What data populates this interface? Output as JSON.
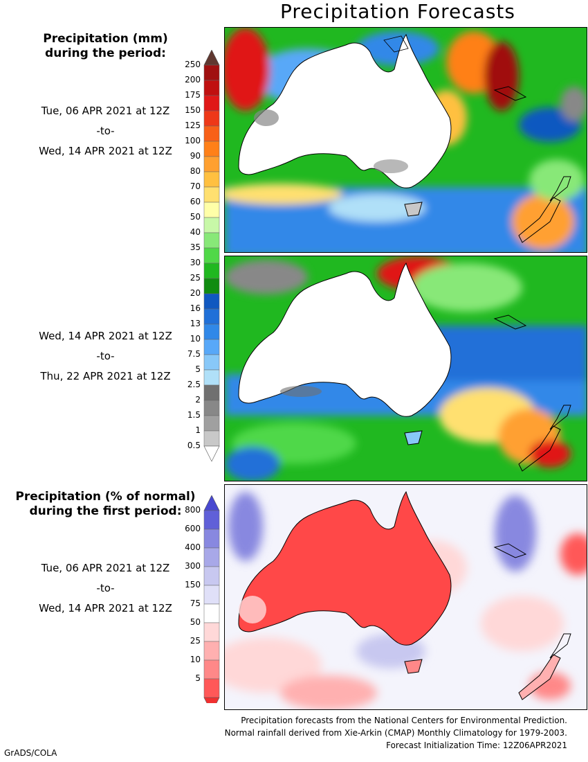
{
  "title": "Precipitation Forecasts",
  "amount_legend": {
    "heading_line1": "Precipitation (mm)",
    "heading_line2": "during the period:",
    "labels": [
      "250",
      "200",
      "175",
      "150",
      "125",
      "100",
      "90",
      "80",
      "70",
      "60",
      "50",
      "40",
      "35",
      "30",
      "25",
      "20",
      "16",
      "13",
      "10",
      "7.5",
      "5",
      "2.5",
      "2",
      "1.5",
      "1",
      "0.5"
    ],
    "colors": [
      "#a01010",
      "#c01010",
      "#e01818",
      "#ee3818",
      "#f86018",
      "#ff8018",
      "#ffa030",
      "#ffc040",
      "#ffe070",
      "#ffffa8",
      "#c8f8a8",
      "#88e878",
      "#50d848",
      "#20b820",
      "#108c10",
      "#1058c0",
      "#2070d8",
      "#3088e8",
      "#58a8f8",
      "#88c8f8",
      "#b0e0f8",
      "#707070",
      "#888888",
      "#a0a0a0",
      "#c8c8c8"
    ],
    "top_arrow_color": "#603830",
    "bottom_arrow_color": "#ffffff"
  },
  "percent_legend": {
    "heading_line1": "Precipitation (% of normal)",
    "heading_line2": "during the first period:",
    "labels": [
      "800",
      "600",
      "400",
      "300",
      "150",
      "75",
      "50",
      "25",
      "10",
      "5"
    ],
    "colors": [
      "#6060d8",
      "#8888e0",
      "#a8a8e8",
      "#c8c8f0",
      "#e0e0f8",
      "#ffffff",
      "#ffd8d8",
      "#ffb0b0",
      "#ff8888",
      "#ff5858"
    ],
    "top_arrow_color": "#4848d0",
    "bottom_arrow_color": "#f03030"
  },
  "periods": [
    {
      "start": "Tue, 06 APR 2021 at 12Z",
      "sep": "-to-",
      "end": "Wed, 14 APR 2021 at 12Z"
    },
    {
      "start": "Wed, 14 APR 2021 at 12Z",
      "sep": "-to-",
      "end": "Thu, 22 APR 2021 at 12Z"
    },
    {
      "start": "Tue, 06 APR 2021 at 12Z",
      "sep": "-to-",
      "end": "Wed, 14 APR 2021 at 12Z"
    }
  ],
  "footer": {
    "line1": "Precipitation forecasts from the National Centers for Environmental Prediction.",
    "line2": "Normal rainfall derived from Xie-Arkin (CMAP) Monthly Climatology for 1979-2003.",
    "line3": "Forecast Initialization Time: 12Z06APR2021"
  },
  "credit": "GrADS/COLA"
}
